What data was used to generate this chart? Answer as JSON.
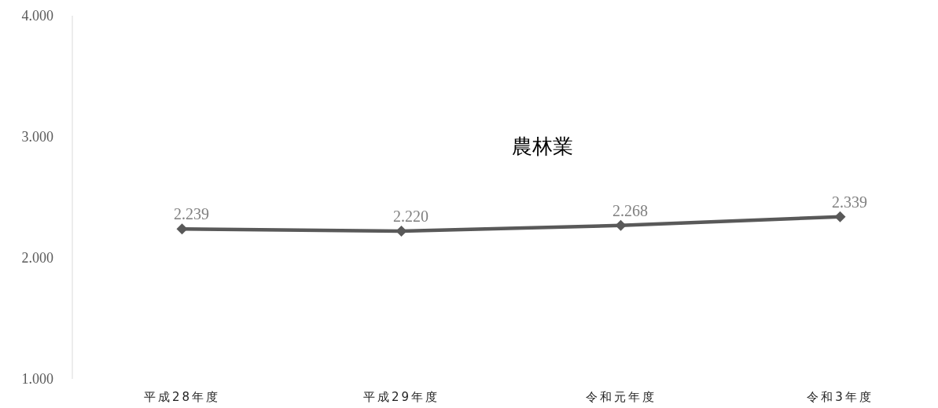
{
  "chart_data": {
    "type": "line",
    "title": "農林業",
    "categories": [
      "平成28年度",
      "平成29年度",
      "令和元年度",
      "令和3年度"
    ],
    "series": [
      {
        "color": "#595959",
        "values": [
          2.239,
          2.22,
          2.268,
          2.339
        ]
      }
    ],
    "value_labels": [
      "2.239",
      "2.220",
      "2.268",
      "2.339"
    ],
    "ylim": [
      1,
      4
    ],
    "yticks": [
      {
        "value": 1,
        "label": "1.000"
      },
      {
        "value": 2,
        "label": "2.000"
      },
      {
        "value": 3,
        "label": "3.000"
      },
      {
        "value": 4,
        "label": "4.000"
      }
    ],
    "marker": "diamond",
    "line_style": "solid",
    "grid": false
  }
}
